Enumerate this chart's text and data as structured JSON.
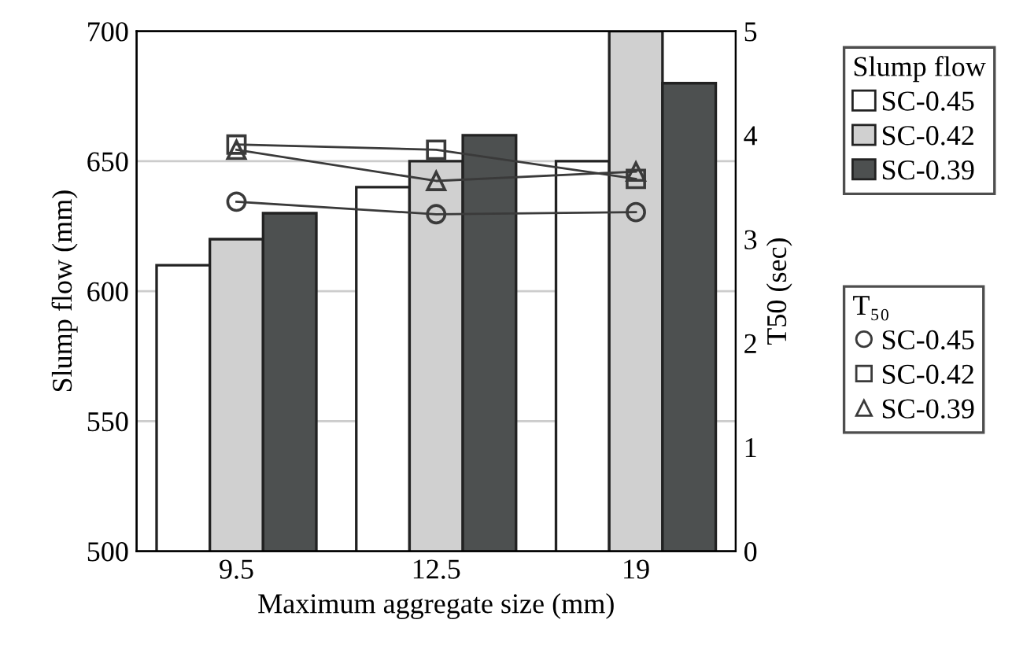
{
  "chart_data": {
    "type": "bar",
    "xlabel": "Maximum aggregate size (mm)",
    "ylabel": "Slump flow (mm)",
    "y2label": "T50 (sec)",
    "legend_title": [
      "Slump flow",
      "T₅₀"
    ],
    "categories": [
      "9.5",
      "12.5",
      "19"
    ],
    "series": [
      {
        "name": "SC-0.45",
        "color": "#ffffff",
        "values": [
          610,
          640,
          650
        ]
      },
      {
        "name": "SC-0.42",
        "color": "#d0d0d0",
        "values": [
          620,
          650,
          700
        ]
      },
      {
        "name": "SC-0.39",
        "color": "#4d5050",
        "values": [
          630,
          660,
          680
        ]
      },
      {
        "name": "SC-0.45",
        "type": "line",
        "axis": "y2",
        "marker": "circle",
        "color": "#3a3a3a",
        "values": [
          3.36,
          3.24,
          3.26
        ]
      },
      {
        "name": "SC-0.42",
        "type": "line",
        "axis": "y2",
        "marker": "square",
        "color": "#3a3a3a",
        "values": [
          3.91,
          3.86,
          3.58
        ]
      },
      {
        "name": "SC-0.39",
        "type": "line",
        "axis": "y2",
        "marker": "triangle",
        "color": "#3a3a3a",
        "values": [
          3.86,
          3.56,
          3.65
        ]
      }
    ],
    "ylim": [
      500,
      700
    ],
    "yticks": [
      500,
      550,
      600,
      650,
      700
    ],
    "y2lim": [
      0,
      5
    ],
    "y2ticks": [
      0,
      1,
      2,
      3,
      4,
      5
    ],
    "grid": "y",
    "legend": "right"
  }
}
